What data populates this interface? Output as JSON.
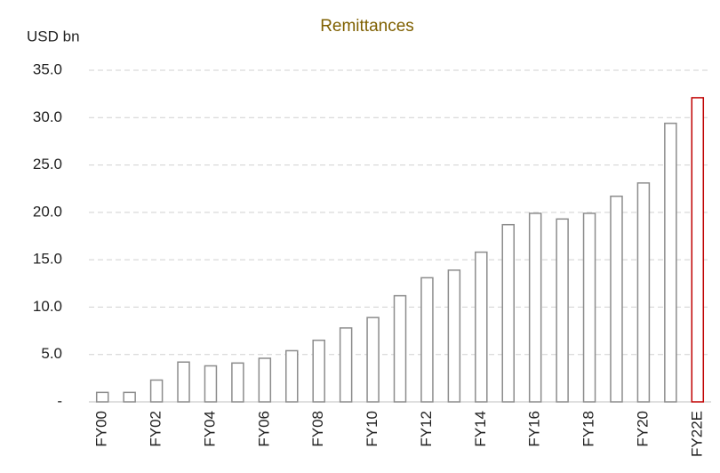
{
  "chart_data": {
    "type": "bar",
    "title": "Remittances",
    "y_label": "USD bn",
    "categories": [
      "FY00",
      null,
      "FY02",
      null,
      "FY04",
      null,
      "FY06",
      null,
      "FY08",
      null,
      "FY10",
      null,
      "FY12",
      null,
      "FY14",
      null,
      "FY16",
      null,
      "FY18",
      null,
      "FY20",
      null,
      "FY22E"
    ],
    "values": [
      1.0,
      1.0,
      2.3,
      4.2,
      3.8,
      4.1,
      4.6,
      5.4,
      6.5,
      7.8,
      8.9,
      11.2,
      13.1,
      13.9,
      15.8,
      18.7,
      19.9,
      19.3,
      19.9,
      21.7,
      23.1,
      29.4,
      32.1
    ],
    "colors": [
      "#8c8c8c",
      "#8c8c8c",
      "#8c8c8c",
      "#8c8c8c",
      "#8c8c8c",
      "#8c8c8c",
      "#8c8c8c",
      "#8c8c8c",
      "#8c8c8c",
      "#8c8c8c",
      "#8c8c8c",
      "#8c8c8c",
      "#8c8c8c",
      "#8c8c8c",
      "#8c8c8c",
      "#8c8c8c",
      "#8c8c8c",
      "#8c8c8c",
      "#8c8c8c",
      "#8c8c8c",
      "#8c8c8c",
      "#8c8c8c",
      "#c00000"
    ],
    "ylim": [
      0,
      35
    ],
    "yticks": [
      {
        "value": 0,
        "label": "-"
      },
      {
        "value": 5,
        "label": "5.0"
      },
      {
        "value": 10,
        "label": "10.0"
      },
      {
        "value": 15,
        "label": "15.0"
      },
      {
        "value": 20,
        "label": "20.0"
      },
      {
        "value": 25,
        "label": "25.0"
      },
      {
        "value": 30,
        "label": "30.0"
      },
      {
        "value": 35,
        "label": "35.0"
      }
    ],
    "grid": true
  }
}
